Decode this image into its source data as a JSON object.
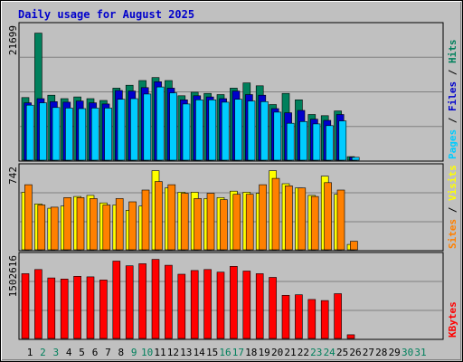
{
  "chart_data": {
    "type": "bar",
    "title": "Daily usage for August 2025",
    "categories": [
      "1",
      "2",
      "3",
      "4",
      "5",
      "6",
      "7",
      "8",
      "9",
      "10",
      "11",
      "12",
      "13",
      "14",
      "15",
      "16",
      "17",
      "18",
      "19",
      "20",
      "21",
      "22",
      "23",
      "24",
      "25",
      "26",
      "27",
      "28",
      "29",
      "30",
      "31"
    ],
    "weekend_days": [
      2,
      3,
      9,
      10,
      16,
      17,
      23,
      24,
      30,
      31
    ],
    "panels": [
      {
        "name": "top",
        "max_label": "21699",
        "ymax": 21699,
        "axis_legend": [
          {
            "text": "Pages",
            "color": "#00ccff"
          },
          {
            "text": " / ",
            "color": "#000000"
          },
          {
            "text": "Files",
            "color": "#0000cc"
          },
          {
            "text": " / ",
            "color": "#000000"
          },
          {
            "text": "Hits",
            "color": "#00805c"
          }
        ],
        "series": [
          {
            "name": "Hits",
            "color": "#00805c",
            "values": [
              10700,
              21699,
              11100,
              10500,
              10800,
              10500,
              10200,
              12300,
              12800,
              13600,
              14100,
              13600,
              11000,
              11600,
              11400,
              11200,
              12300,
              13200,
              12700,
              9500,
              11400,
              10300,
              7800,
              7600,
              8400,
              600,
              0,
              0,
              0,
              0,
              0
            ]
          },
          {
            "name": "Files",
            "color": "#0000cc",
            "values": [
              9800,
              10500,
              10000,
              9900,
              10100,
              9800,
              9600,
              11900,
              11800,
              12400,
              13400,
              12300,
              10300,
              11000,
              10800,
              10500,
              11800,
              11200,
              11100,
              8800,
              8100,
              8500,
              7000,
              6800,
              7800,
              500,
              0,
              0,
              0,
              0,
              0
            ]
          },
          {
            "name": "Pages",
            "color": "#00ccff",
            "values": [
              9400,
              9800,
              9000,
              8900,
              8800,
              8900,
              8900,
              10400,
              10500,
              11300,
              12500,
              11500,
              9600,
              10300,
              10300,
              9900,
              10400,
              10100,
              10000,
              8200,
              6300,
              6600,
              6200,
              5900,
              6700,
              500,
              0,
              0,
              0,
              0,
              0
            ]
          }
        ]
      },
      {
        "name": "middle",
        "max_label": "742",
        "ymax": 742,
        "axis_legend": [
          {
            "text": "Sites",
            "color": "#ff8000"
          },
          {
            "text": " / ",
            "color": "#000000"
          },
          {
            "text": "Visits",
            "color": "#ffff00"
          }
        ],
        "series": [
          {
            "name": "Visits",
            "color": "#ffff00",
            "values": [
              540,
              430,
              390,
              410,
              500,
              510,
              440,
              420,
              370,
              410,
              742,
              580,
              540,
              540,
              480,
              490,
              550,
              540,
              530,
              742,
              620,
              580,
              510,
              690,
              520,
              50,
              0,
              0,
              0,
              0,
              0
            ]
          },
          {
            "name": "Sites",
            "color": "#ff8000",
            "values": [
              610,
              420,
              400,
              490,
              490,
              480,
              420,
              480,
              450,
              560,
              640,
              610,
              530,
              480,
              530,
              470,
              520,
              520,
              610,
              670,
              600,
              580,
              500,
              630,
              560,
              80,
              0,
              0,
              0,
              0,
              0
            ]
          }
        ]
      },
      {
        "name": "bottom",
        "max_label": "1502616",
        "ymax": 1502616,
        "axis_legend": [
          {
            "text": "KBytes",
            "color": "#ff0000"
          }
        ],
        "series": [
          {
            "name": "KBytes",
            "color": "#ff0000",
            "values": [
              1230000,
              1310000,
              1150000,
              1130000,
              1180000,
              1170000,
              1110000,
              1470000,
              1380000,
              1420000,
              1502616,
              1390000,
              1220000,
              1290000,
              1310000,
              1260000,
              1370000,
              1280000,
              1230000,
              1160000,
              820000,
              830000,
              740000,
              720000,
              850000,
              70000,
              0,
              0,
              0,
              0,
              0
            ]
          }
        ]
      }
    ]
  }
}
